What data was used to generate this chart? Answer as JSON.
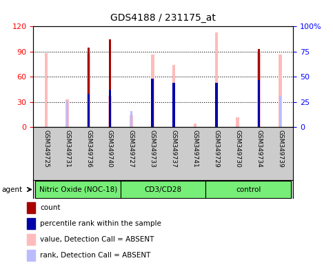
{
  "title": "GDS4188 / 231175_at",
  "samples": [
    "GSM349725",
    "GSM349731",
    "GSM349736",
    "GSM349740",
    "GSM349727",
    "GSM349733",
    "GSM349737",
    "GSM349741",
    "GSM349729",
    "GSM349730",
    "GSM349734",
    "GSM349739"
  ],
  "groups": [
    {
      "label": "Nitric Oxide (NOC-18)",
      "start": 0,
      "end": 4
    },
    {
      "label": "CD3/CD28",
      "start": 4,
      "end": 8
    },
    {
      "label": "control",
      "start": 8,
      "end": 12
    }
  ],
  "count": [
    null,
    null,
    95,
    105,
    null,
    null,
    null,
    null,
    null,
    null,
    93,
    null
  ],
  "percentile_rank": [
    null,
    null,
    33,
    37,
    null,
    48,
    44,
    null,
    44,
    null,
    47,
    null
  ],
  "value_absent": [
    88,
    33,
    88,
    37,
    14,
    87,
    74,
    4,
    113,
    12,
    88,
    87
  ],
  "rank_absent": [
    null,
    26,
    null,
    null,
    16,
    48,
    42,
    null,
    42,
    null,
    null,
    31
  ],
  "ylim_left": [
    0,
    120
  ],
  "ylim_right": [
    0,
    100
  ],
  "yticks_left": [
    0,
    30,
    60,
    90,
    120
  ],
  "yticks_right": [
    0,
    25,
    50,
    75,
    100
  ],
  "yticklabels_right": [
    "0",
    "25",
    "50",
    "75",
    "100%"
  ],
  "color_count": "#aa0000",
  "color_percentile": "#0000aa",
  "color_value_absent": "#ffbbbb",
  "color_rank_absent": "#bbbbff",
  "group_color": "#77ee77",
  "label_bg": "#cccccc",
  "agent_label": "agent",
  "figsize": [
    4.83,
    3.84
  ],
  "dpi": 100
}
